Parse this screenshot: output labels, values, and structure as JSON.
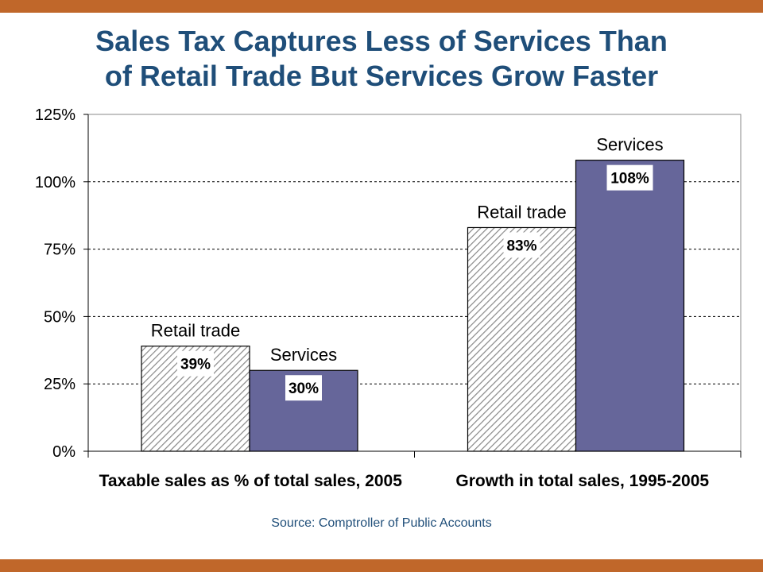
{
  "header": {
    "title_line1": "Sales Tax Captures Less of Services Than",
    "title_line2": "of Retail Trade But Services Grow Faster"
  },
  "footer": {
    "source": "Source: Comptroller of Public Accounts"
  },
  "colors": {
    "accent_bar": "#c0672a",
    "title": "#1f4e79",
    "services_bar": "#66669a",
    "retail_hatch": "#888888"
  },
  "chart_data": {
    "type": "bar",
    "categories": [
      "Taxable sales as % of total sales, 2005",
      "Growth in total sales, 1995-2005"
    ],
    "series": [
      {
        "name": "Retail trade",
        "values": [
          39,
          83
        ],
        "labels": [
          "39%",
          "83%"
        ],
        "pattern": "hatched"
      },
      {
        "name": "Services",
        "values": [
          30,
          108
        ],
        "labels": [
          "30%",
          "108%"
        ],
        "pattern": "solid"
      }
    ],
    "ylim": [
      0,
      125
    ],
    "yticks": [
      0,
      25,
      50,
      75,
      100,
      125
    ],
    "ytick_labels": [
      "0%",
      "25%",
      "50%",
      "75%",
      "100%",
      "125%"
    ],
    "grid": "horizontal dashed",
    "legend": "none (series names shown above bars)"
  }
}
